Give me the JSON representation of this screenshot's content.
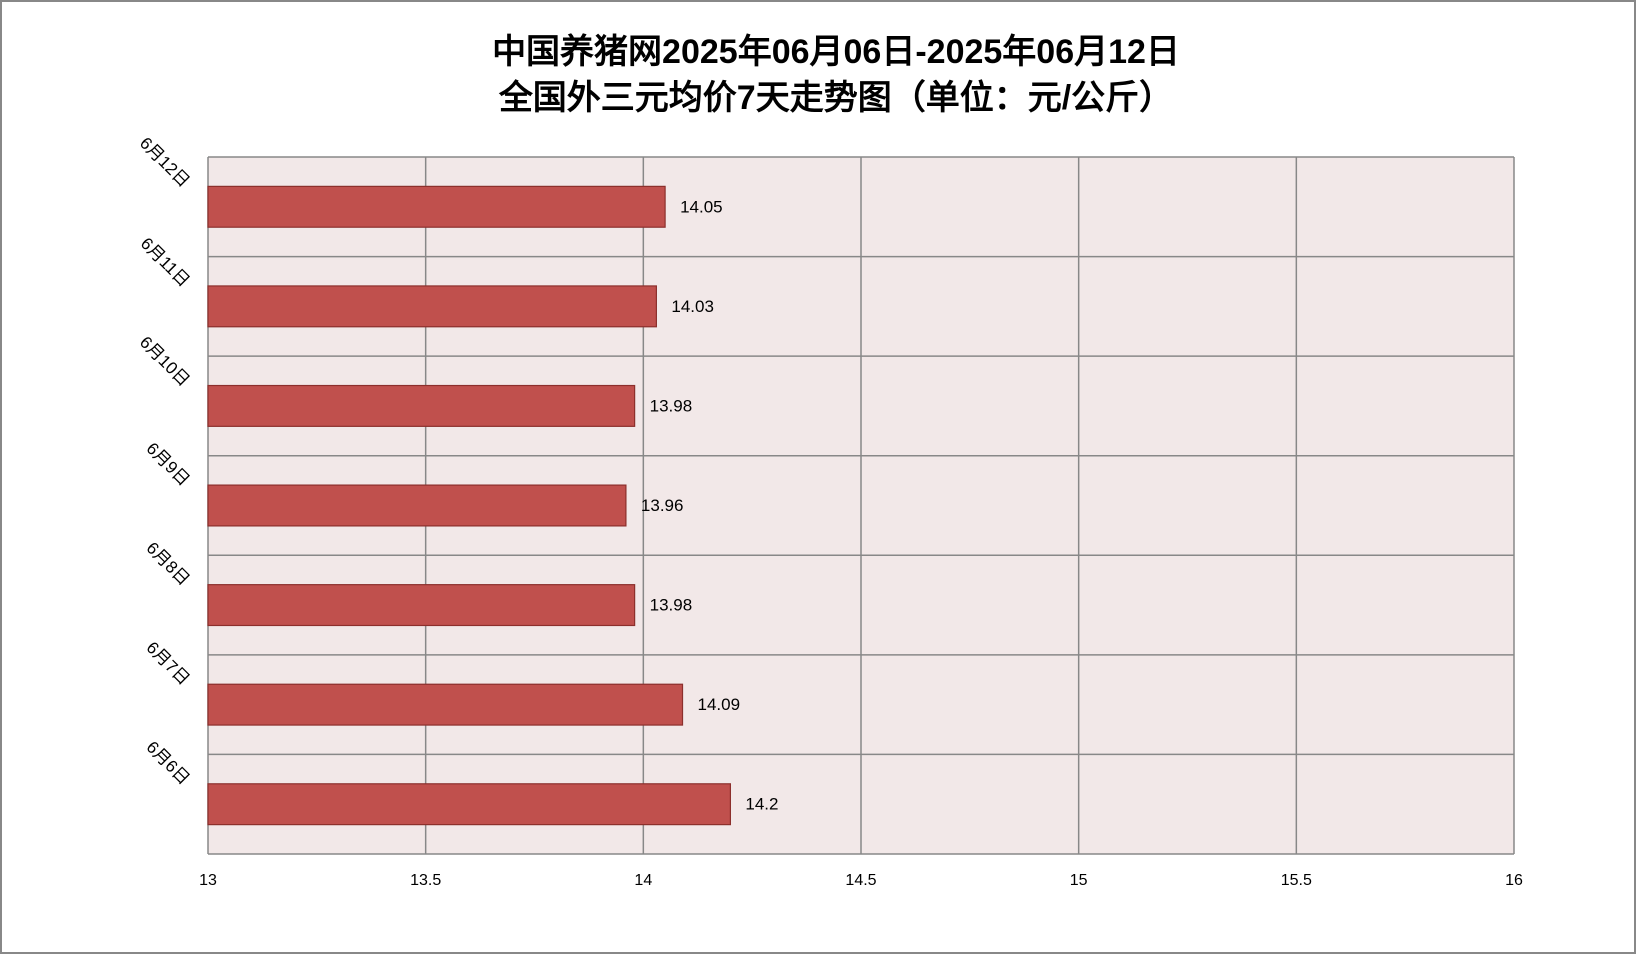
{
  "chart_data": {
    "type": "hbar",
    "title": [
      "中国养猪网2025年06月06日-2025年06月12日",
      "全国外三元均价7天走势图（单位：元/公斤）"
    ],
    "categories": [
      "6月6日",
      "6月7日",
      "6月8日",
      "6月9日",
      "6月10日",
      "6月11日",
      "6月12日"
    ],
    "values": [
      14.2,
      14.09,
      13.98,
      13.96,
      13.98,
      14.03,
      14.05
    ],
    "color": "#c0504d",
    "xlim": [
      13,
      16
    ],
    "xticks": [
      13,
      13.5,
      14,
      14.5,
      15,
      15.5,
      16
    ],
    "grid": true
  }
}
